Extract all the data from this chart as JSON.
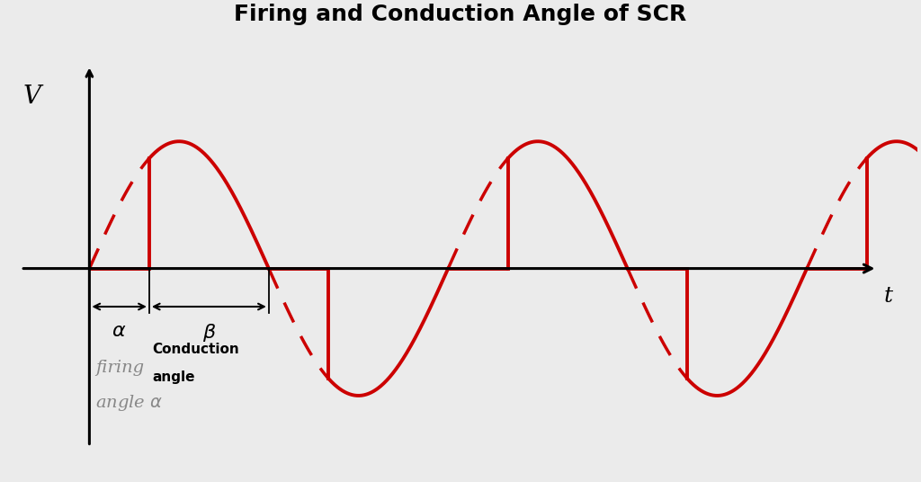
{
  "title": "Firing and Conduction Angle of SCR",
  "title_fontsize": 18,
  "title_fontweight": "bold",
  "bg_color": "#ebebeb",
  "wave_color": "#cc0000",
  "amplitude": 1.0,
  "period": 6.28318,
  "alpha_rad": 1.0472,
  "xlim": [
    -1.5,
    14.5
  ],
  "ylim": [
    -1.65,
    1.85
  ],
  "lw": 2.8,
  "dashed_lw": 2.5,
  "axis_start_x": -0.5,
  "axis_end_x": 14.0,
  "y_axis_top": 1.6,
  "y_axis_bottom": -1.4
}
